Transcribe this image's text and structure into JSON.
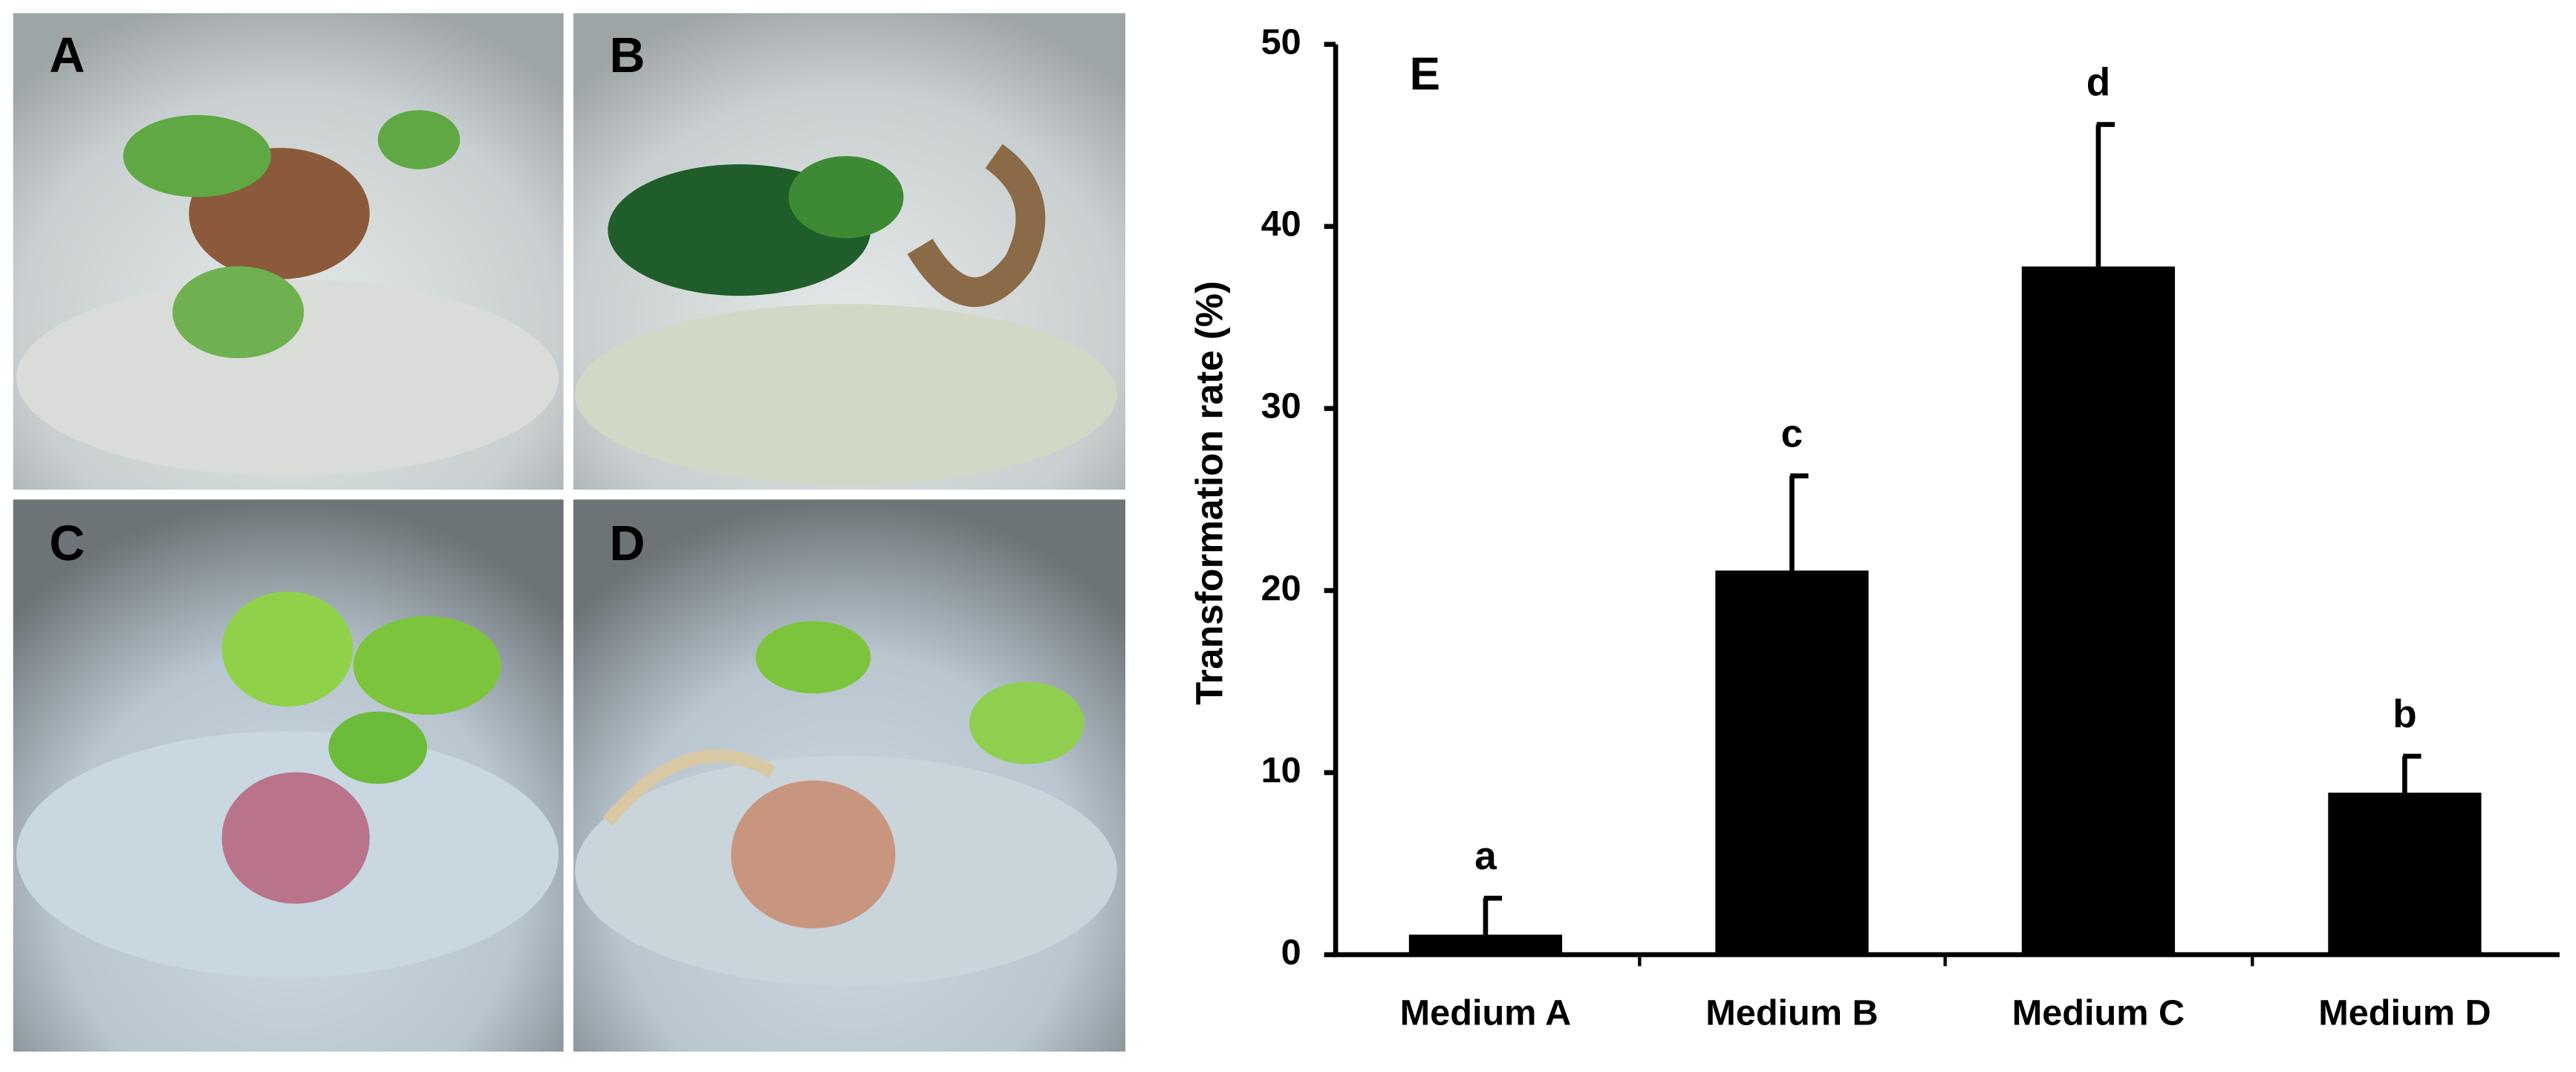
{
  "panels": [
    "A",
    "B",
    "C",
    "D"
  ],
  "chart_data": {
    "type": "bar",
    "panel_label": "E",
    "y_label": "Transformation rate (%)",
    "categories": [
      "Medium A",
      "Medium B",
      "Medium C",
      "Medium D"
    ],
    "values": [
      1.1,
      21.1,
      37.8,
      8.9
    ],
    "errors": [
      2.0,
      5.2,
      7.8,
      2.0
    ],
    "significance_letters": [
      "a",
      "c",
      "d",
      "b"
    ],
    "color": "#000000",
    "ylim": [
      0,
      50
    ],
    "yticks": [
      0,
      10,
      20,
      30,
      40,
      50
    ],
    "grid": false
  }
}
